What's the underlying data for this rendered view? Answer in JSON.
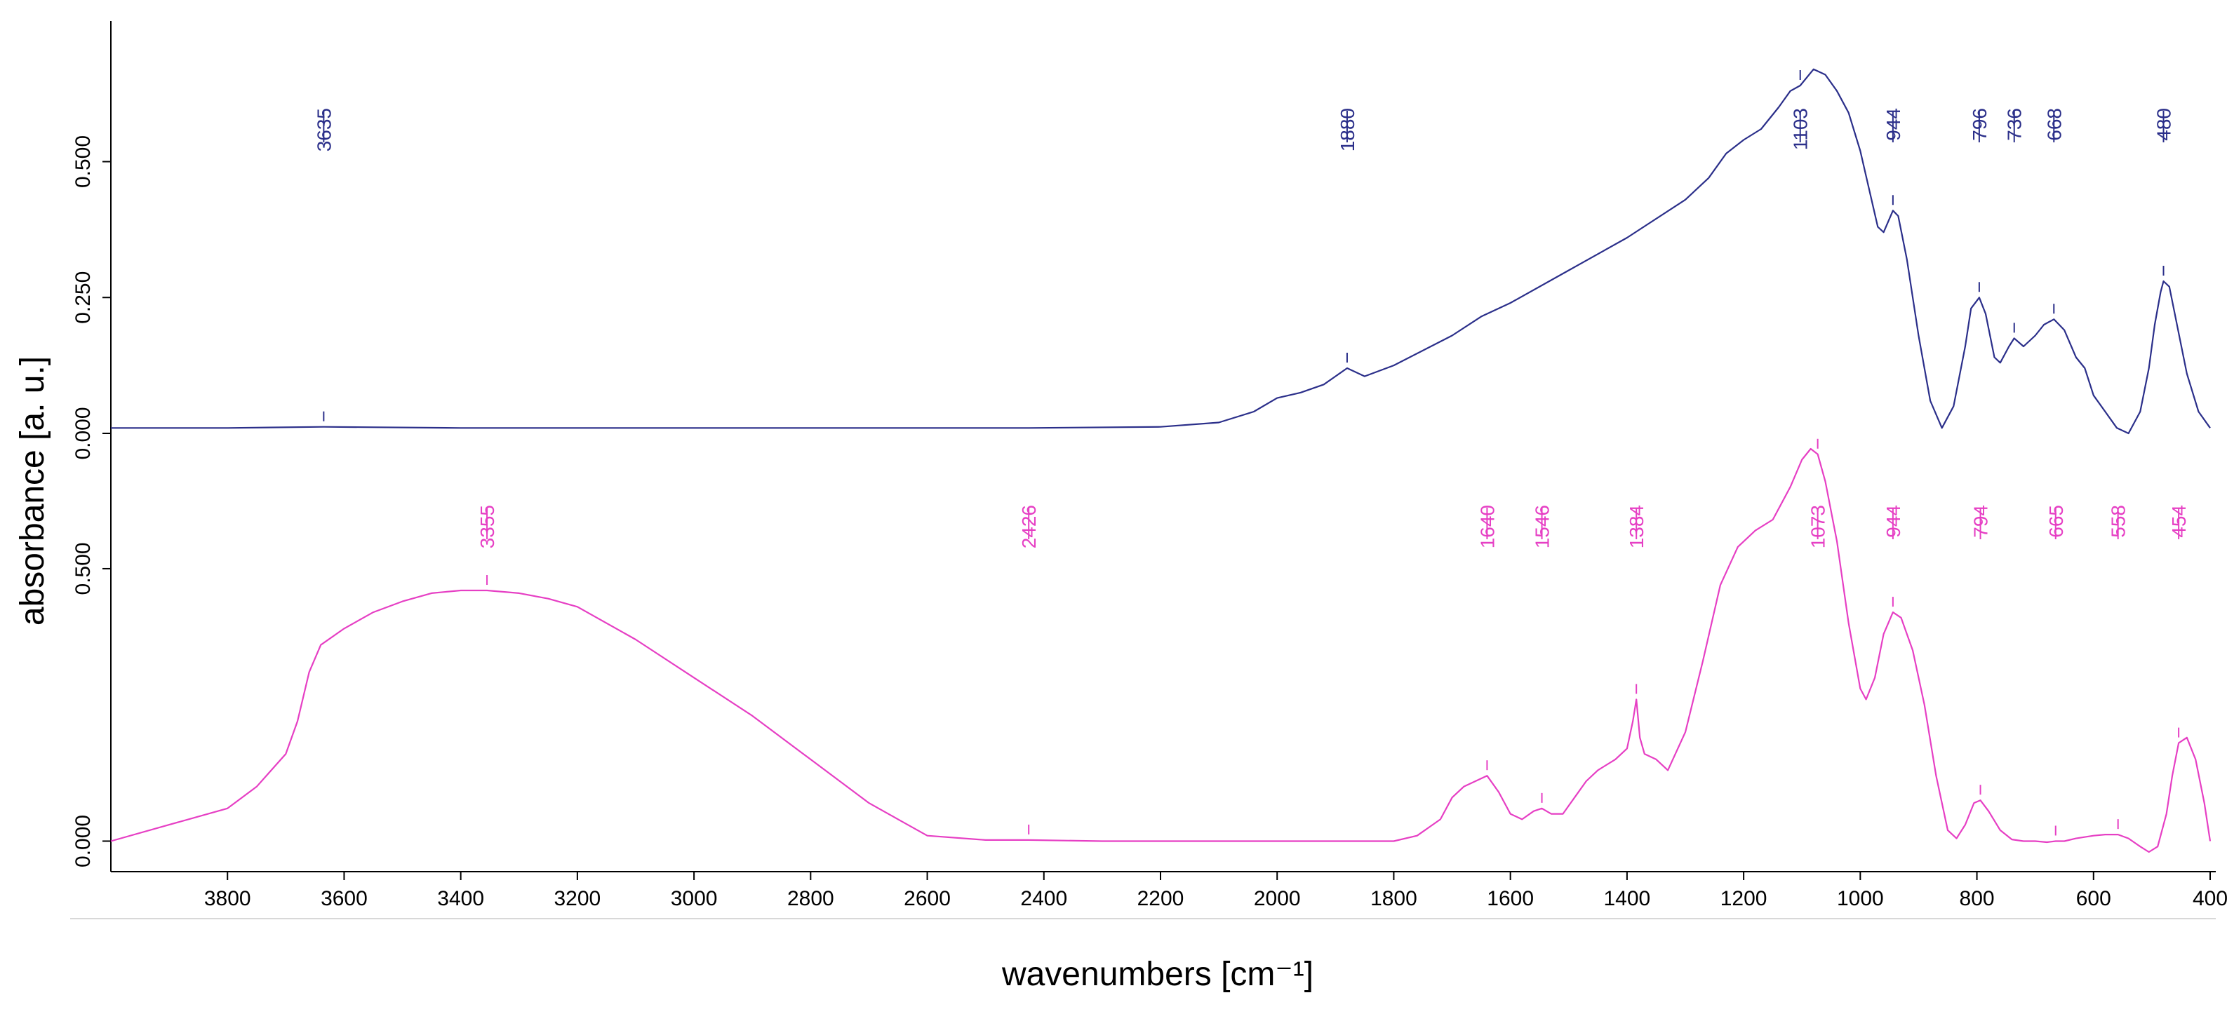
{
  "chart_data": {
    "type": "line",
    "xlabel": "wavenumbers [cm⁻¹]",
    "ylabel": "absorbance [a. u.]",
    "title": "",
    "xlim": [
      4000,
      400
    ],
    "x_reversed": true,
    "x_ticks": [
      3800,
      3600,
      3400,
      3200,
      3000,
      2800,
      2600,
      2400,
      2200,
      2000,
      1800,
      1600,
      1400,
      1200,
      1000,
      800,
      600,
      400
    ],
    "grid": false,
    "legend": "none",
    "panels": [
      {
        "ylim": [
          0,
          0.72
        ],
        "y_ticks": [
          0.0,
          0.25,
          0.5
        ],
        "y_tick_labels": [
          "0.000",
          "0.250",
          "0.500"
        ],
        "series": [
          {
            "color": "#2b2f8a",
            "x": [
              4000,
              3800,
              3635,
              3400,
              3000,
              2600,
              2426,
              2200,
              2100,
              2040,
              2000,
              1960,
              1920,
              1880,
              1850,
              1800,
              1700,
              1650,
              1600,
              1500,
              1400,
              1300,
              1260,
              1230,
              1200,
              1170,
              1140,
              1120,
              1103,
              1080,
              1060,
              1040,
              1020,
              1000,
              985,
              970,
              960,
              944,
              935,
              920,
              900,
              880,
              860,
              840,
              820,
              810,
              796,
              785,
              770,
              760,
              745,
              736,
              720,
              700,
              685,
              668,
              650,
              630,
              615,
              600,
              580,
              560,
              540,
              520,
              505,
              495,
              485,
              480,
              470,
              455,
              440,
              420,
              400
            ],
            "y": [
              0.01,
              0.01,
              0.012,
              0.01,
              0.01,
              0.01,
              0.01,
              0.012,
              0.02,
              0.04,
              0.065,
              0.075,
              0.09,
              0.12,
              0.105,
              0.125,
              0.18,
              0.215,
              0.24,
              0.3,
              0.36,
              0.43,
              0.47,
              0.515,
              0.54,
              0.56,
              0.6,
              0.63,
              0.64,
              0.67,
              0.66,
              0.63,
              0.59,
              0.52,
              0.45,
              0.38,
              0.37,
              0.41,
              0.4,
              0.32,
              0.18,
              0.06,
              0.01,
              0.05,
              0.16,
              0.23,
              0.25,
              0.22,
              0.14,
              0.13,
              0.16,
              0.175,
              0.16,
              0.18,
              0.2,
              0.21,
              0.19,
              0.14,
              0.12,
              0.07,
              0.04,
              0.01,
              0.0,
              0.04,
              0.12,
              0.2,
              0.26,
              0.28,
              0.27,
              0.19,
              0.11,
              0.04,
              0.01
            ]
          }
        ],
        "peak_labels": [
          {
            "x": 3635,
            "label": "3635"
          },
          {
            "x": 1880,
            "label": "1880"
          },
          {
            "x": 1103,
            "label": "1103"
          },
          {
            "x": 944,
            "label": "944"
          },
          {
            "x": 796,
            "label": "796"
          },
          {
            "x": 736,
            "label": "736"
          },
          {
            "x": 668,
            "label": "668"
          },
          {
            "x": 480,
            "label": "480"
          }
        ]
      },
      {
        "ylim": [
          -0.02,
          0.72
        ],
        "y_ticks": [
          0.0,
          0.5
        ],
        "y_tick_labels": [
          "0.000",
          "0.500"
        ],
        "series": [
          {
            "color": "#e63fc4",
            "x": [
              4000,
              3900,
              3800,
              3750,
              3700,
              3680,
              3660,
              3640,
              3600,
              3550,
              3500,
              3450,
              3400,
              3355,
              3300,
              3250,
              3200,
              3100,
              3000,
              2900,
              2800,
              2700,
              2650,
              2600,
              2500,
              2426,
              2300,
              2000,
              1800,
              1760,
              1720,
              1700,
              1680,
              1660,
              1640,
              1620,
              1600,
              1580,
              1560,
              1546,
              1530,
              1510,
              1490,
              1470,
              1450,
              1420,
              1400,
              1390,
              1384,
              1378,
              1370,
              1350,
              1330,
              1300,
              1270,
              1240,
              1210,
              1180,
              1150,
              1120,
              1100,
              1085,
              1073,
              1060,
              1040,
              1020,
              1000,
              990,
              975,
              960,
              944,
              930,
              910,
              890,
              870,
              850,
              835,
              820,
              805,
              794,
              780,
              760,
              740,
              720,
              700,
              680,
              665,
              650,
              630,
              600,
              580,
              558,
              540,
              520,
              505,
              490,
              475,
              465,
              454,
              440,
              425,
              410,
              400
            ],
            "y": [
              0.0,
              0.03,
              0.06,
              0.1,
              0.16,
              0.22,
              0.31,
              0.36,
              0.39,
              0.42,
              0.44,
              0.455,
              0.46,
              0.46,
              0.455,
              0.445,
              0.43,
              0.37,
              0.3,
              0.23,
              0.15,
              0.07,
              0.04,
              0.01,
              0.002,
              0.002,
              0.0,
              0.0,
              0.0,
              0.01,
              0.04,
              0.08,
              0.1,
              0.11,
              0.12,
              0.09,
              0.05,
              0.04,
              0.055,
              0.06,
              0.05,
              0.05,
              0.08,
              0.11,
              0.13,
              0.15,
              0.17,
              0.22,
              0.26,
              0.19,
              0.16,
              0.15,
              0.13,
              0.2,
              0.33,
              0.47,
              0.54,
              0.57,
              0.59,
              0.65,
              0.7,
              0.72,
              0.71,
              0.66,
              0.55,
              0.4,
              0.28,
              0.26,
              0.3,
              0.38,
              0.42,
              0.41,
              0.35,
              0.25,
              0.12,
              0.02,
              0.005,
              0.03,
              0.07,
              0.075,
              0.055,
              0.02,
              0.003,
              0.0,
              0.0,
              -0.002,
              0.0,
              0.0,
              0.005,
              0.01,
              0.012,
              0.012,
              0.005,
              -0.01,
              -0.02,
              -0.01,
              0.05,
              0.12,
              0.18,
              0.19,
              0.15,
              0.07,
              0.0
            ]
          }
        ],
        "peak_labels": [
          {
            "x": 3355,
            "label": "3355"
          },
          {
            "x": 2426,
            "label": "2426"
          },
          {
            "x": 1640,
            "label": "1640"
          },
          {
            "x": 1546,
            "label": "1546"
          },
          {
            "x": 1384,
            "label": "1384"
          },
          {
            "x": 1073,
            "label": "1073"
          },
          {
            "x": 944,
            "label": "944"
          },
          {
            "x": 794,
            "label": "794"
          },
          {
            "x": 665,
            "label": "665"
          },
          {
            "x": 558,
            "label": "558"
          },
          {
            "x": 454,
            "label": "454"
          }
        ]
      }
    ]
  }
}
